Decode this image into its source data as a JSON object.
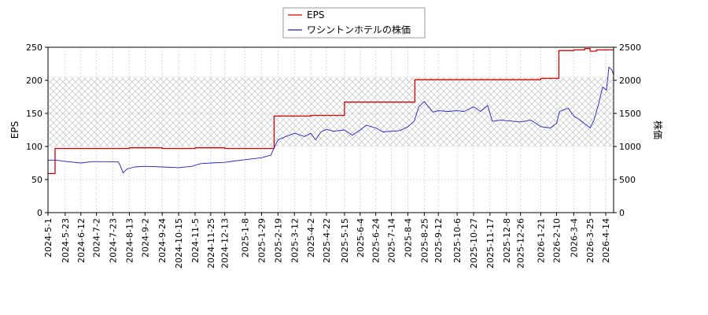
{
  "chart_data": {
    "type": "line",
    "legend": {
      "placement": "top-center",
      "entries": [
        "EPS",
        "ワシントンホテルの株価"
      ]
    },
    "x_tick_labels": [
      "2024-5-1",
      "2024-5-23",
      "2024-6-12",
      "2024-7-2",
      "2024-7-23",
      "2024-8-13",
      "2024-9-2",
      "2024-9-24",
      "2024-10-15",
      "2024-11-5",
      "2024-11-25",
      "2024-12-13",
      "2025-1-8",
      "2025-1-29",
      "2025-2-19",
      "2025-3-12",
      "2025-4-2",
      "2025-4-22",
      "2025-5-15",
      "2025-6-4",
      "2025-6-24",
      "2025-7-14",
      "2025-8-4",
      "2025-8-25",
      "2025-9-12",
      "2025-10-6",
      "2025-10-27",
      "2025-11-17",
      "2025-12-8",
      "2025-12-26",
      "2026-1-21",
      "2026-2-10",
      "2026-3-4",
      "2026-3-25",
      "2026-4-14"
    ],
    "y_left": {
      "label": "EPS",
      "lim": [
        0,
        250
      ],
      "ticks": [
        0,
        50,
        100,
        150,
        200,
        250
      ]
    },
    "y_right": {
      "label": "株価",
      "lim": [
        0,
        2500
      ],
      "ticks": [
        0,
        500,
        1000,
        1500,
        2000,
        2500
      ]
    },
    "band": {
      "axis": "right",
      "from": 1000,
      "to": 2050,
      "pattern": "crosshatch"
    },
    "grid": true,
    "series": [
      {
        "name": "EPS",
        "axis": "left",
        "color": "#dd0000",
        "step": true,
        "points": [
          [
            "2024-5-1",
            59
          ],
          [
            "2024-5-10",
            97
          ],
          [
            "2024-6-12",
            97
          ],
          [
            "2024-7-23",
            97
          ],
          [
            "2024-8-13",
            98
          ],
          [
            "2024-9-24",
            97
          ],
          [
            "2024-11-5",
            98
          ],
          [
            "2024-12-13",
            97
          ],
          [
            "2025-1-29",
            97
          ],
          [
            "2025-2-13",
            97
          ],
          [
            "2025-2-14",
            146
          ],
          [
            "2025-3-12",
            146
          ],
          [
            "2025-4-2",
            147
          ],
          [
            "2025-5-14",
            147
          ],
          [
            "2025-5-15",
            167
          ],
          [
            "2025-6-24",
            167
          ],
          [
            "2025-8-12",
            167
          ],
          [
            "2025-8-13",
            201
          ],
          [
            "2025-9-12",
            201
          ],
          [
            "2025-10-27",
            201
          ],
          [
            "2025-12-26",
            201
          ],
          [
            "2026-1-21",
            203
          ],
          [
            "2026-2-12",
            203
          ],
          [
            "2026-2-13",
            245
          ],
          [
            "2026-3-4",
            246
          ],
          [
            "2026-3-18",
            248
          ],
          [
            "2026-3-25",
            244
          ],
          [
            "2026-4-2",
            246
          ],
          [
            "2026-4-24",
            246
          ]
        ]
      },
      {
        "name": "ワシントンホテルの株価",
        "axis": "right",
        "color": "#2222cc",
        "step": false,
        "points": [
          [
            "2024-5-1",
            790
          ],
          [
            "2024-5-10",
            795
          ],
          [
            "2024-5-23",
            775
          ],
          [
            "2024-6-12",
            750
          ],
          [
            "2024-6-25",
            770
          ],
          [
            "2024-7-10",
            770
          ],
          [
            "2024-7-30",
            765
          ],
          [
            "2024-8-1",
            720
          ],
          [
            "2024-8-5",
            600
          ],
          [
            "2024-8-10",
            660
          ],
          [
            "2024-8-20",
            690
          ],
          [
            "2024-9-2",
            700
          ],
          [
            "2024-9-24",
            690
          ],
          [
            "2024-10-15",
            680
          ],
          [
            "2024-11-1",
            700
          ],
          [
            "2024-11-12",
            740
          ],
          [
            "2024-11-25",
            750
          ],
          [
            "2024-12-13",
            760
          ],
          [
            "2024-12-25",
            780
          ],
          [
            "2025-1-8",
            800
          ],
          [
            "2025-1-29",
            830
          ],
          [
            "2025-2-10",
            870
          ],
          [
            "2025-2-14",
            980
          ],
          [
            "2025-2-19",
            1100
          ],
          [
            "2025-3-1",
            1150
          ],
          [
            "2025-3-12",
            1200
          ],
          [
            "2025-3-25",
            1150
          ],
          [
            "2025-4-2",
            1200
          ],
          [
            "2025-4-8",
            1100
          ],
          [
            "2025-4-15",
            1220
          ],
          [
            "2025-4-22",
            1260
          ],
          [
            "2025-5-1",
            1230
          ],
          [
            "2025-5-15",
            1250
          ],
          [
            "2025-5-25",
            1170
          ],
          [
            "2025-6-4",
            1250
          ],
          [
            "2025-6-12",
            1320
          ],
          [
            "2025-6-24",
            1280
          ],
          [
            "2025-7-3",
            1220
          ],
          [
            "2025-7-14",
            1230
          ],
          [
            "2025-7-25",
            1240
          ],
          [
            "2025-8-4",
            1300
          ],
          [
            "2025-8-12",
            1380
          ],
          [
            "2025-8-18",
            1600
          ],
          [
            "2025-8-25",
            1680
          ],
          [
            "2025-9-5",
            1520
          ],
          [
            "2025-9-12",
            1540
          ],
          [
            "2025-9-25",
            1530
          ],
          [
            "2025-10-6",
            1540
          ],
          [
            "2025-10-15",
            1530
          ],
          [
            "2025-10-27",
            1600
          ],
          [
            "2025-11-5",
            1530
          ],
          [
            "2025-11-14",
            1620
          ],
          [
            "2025-11-20",
            1380
          ],
          [
            "2025-12-1",
            1400
          ],
          [
            "2025-12-8",
            1390
          ],
          [
            "2025-12-18",
            1380
          ],
          [
            "2025-12-26",
            1370
          ],
          [
            "2026-1-8",
            1400
          ],
          [
            "2026-1-21",
            1300
          ],
          [
            "2026-2-2",
            1280
          ],
          [
            "2026-2-10",
            1350
          ],
          [
            "2026-2-14",
            1530
          ],
          [
            "2026-2-25",
            1580
          ],
          [
            "2026-3-4",
            1460
          ],
          [
            "2026-3-12",
            1400
          ],
          [
            "2026-3-25",
            1280
          ],
          [
            "2026-3-30",
            1400
          ],
          [
            "2026-4-5",
            1650
          ],
          [
            "2026-4-10",
            1900
          ],
          [
            "2026-4-15",
            1850
          ],
          [
            "2026-4-18",
            2200
          ],
          [
            "2026-4-22",
            2150
          ],
          [
            "2026-4-24",
            2080
          ]
        ]
      }
    ]
  }
}
